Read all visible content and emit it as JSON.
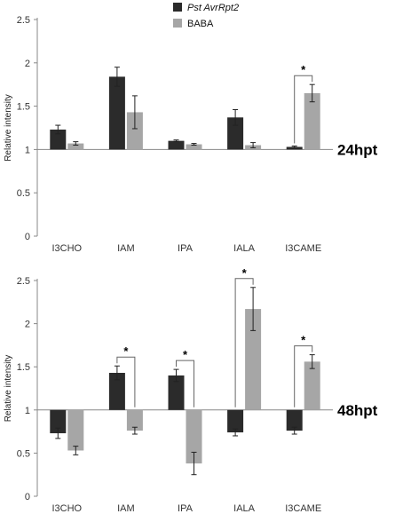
{
  "legend": [
    {
      "label": "Pst AvrRpt2",
      "italic": true
    },
    {
      "label": "BABA",
      "italic": false
    }
  ],
  "colors": {
    "series1": "#2b2b2b",
    "series2": "#a6a6a6",
    "axis": "#888888",
    "bracket": "#666666"
  },
  "chart_data": [
    {
      "type": "bar",
      "panel_label": "24hpt",
      "ylabel": "Relative intensity",
      "ylim": [
        0,
        2.5
      ],
      "yticks": [
        "0",
        "0.5",
        "1",
        "1.5",
        "2",
        "2.5"
      ],
      "baseline": 1,
      "categories": [
        "I3CHO",
        "IAM",
        "IPA",
        "IALA",
        "I3CAME"
      ],
      "series": [
        {
          "name": "Pst AvrRpt2",
          "values": [
            1.23,
            1.84,
            1.1,
            1.37,
            1.03
          ],
          "errors": [
            0.05,
            0.11,
            0.01,
            0.09,
            0.01
          ]
        },
        {
          "name": "BABA",
          "values": [
            1.07,
            1.43,
            1.06,
            1.05,
            1.65
          ],
          "errors": [
            0.02,
            0.19,
            0.01,
            0.03,
            0.1
          ]
        }
      ],
      "significance": [
        {
          "category": "I3CAME",
          "marker": "*"
        }
      ]
    },
    {
      "type": "bar",
      "panel_label": "48hpt",
      "ylabel": "Relative intensity",
      "ylim": [
        0,
        2.5
      ],
      "yticks": [
        "0",
        "0.5",
        "1",
        "1.5",
        "2",
        "2.5"
      ],
      "baseline": 1,
      "categories": [
        "I3CHO",
        "IAM",
        "IPA",
        "IALA",
        "I3CAME"
      ],
      "series": [
        {
          "name": "Pst AvrRpt2",
          "values": [
            0.73,
            1.43,
            1.4,
            0.74,
            0.76
          ],
          "errors": [
            0.06,
            0.08,
            0.07,
            0.04,
            0.04
          ]
        },
        {
          "name": "BABA",
          "values": [
            0.53,
            0.76,
            0.38,
            2.17,
            1.56
          ],
          "errors": [
            0.05,
            0.04,
            0.13,
            0.25,
            0.08
          ]
        }
      ],
      "significance": [
        {
          "category": "IAM",
          "marker": "*"
        },
        {
          "category": "IPA",
          "marker": "*"
        },
        {
          "category": "IALA",
          "marker": "*"
        },
        {
          "category": "I3CAME",
          "marker": "*"
        }
      ]
    }
  ]
}
